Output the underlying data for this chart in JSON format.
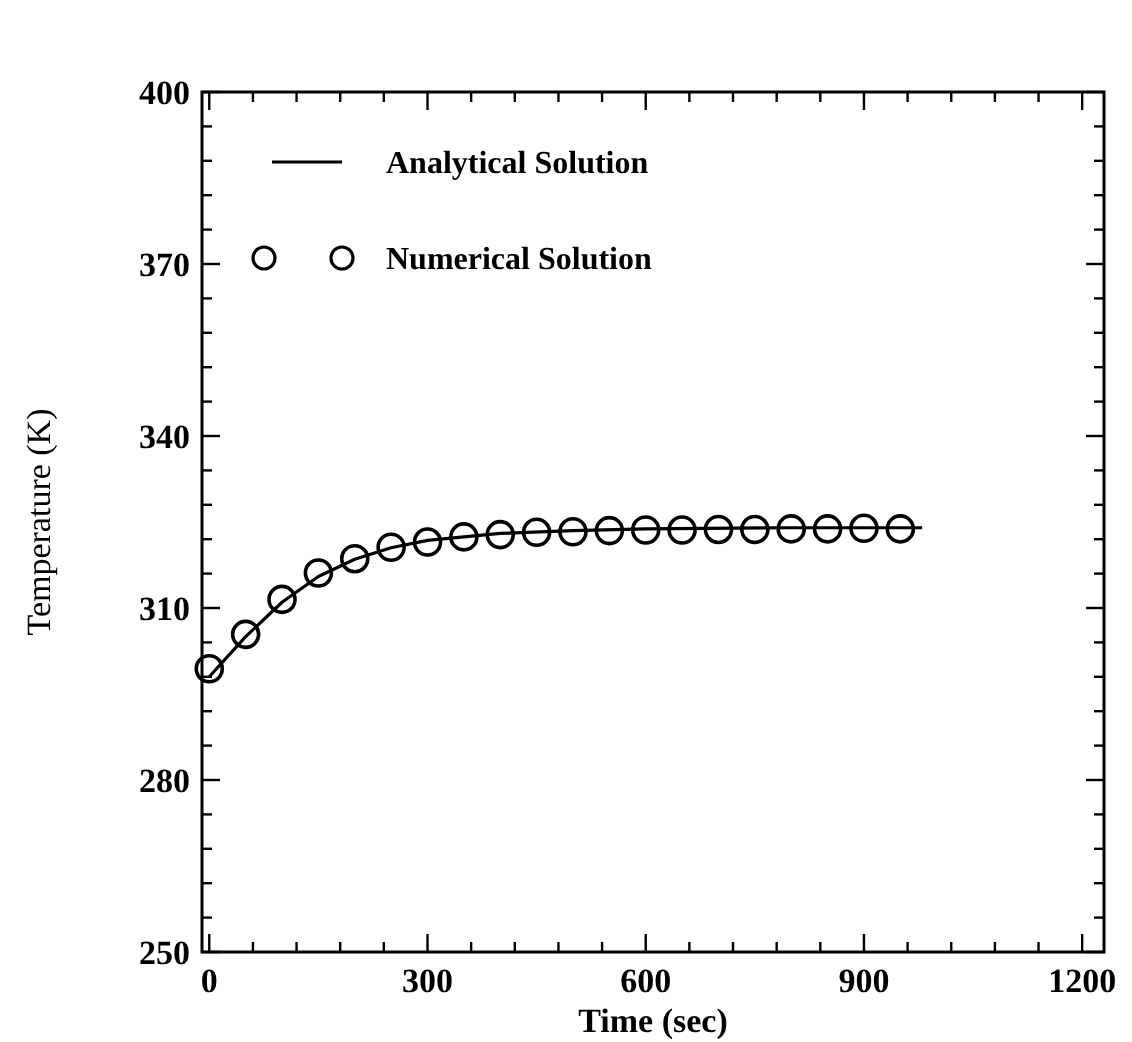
{
  "chart_data": {
    "type": "line",
    "xlabel": "Time (sec)",
    "ylabel": "Temperature (K)",
    "xlim": [
      -10,
      1230
    ],
    "ylim": [
      250,
      400
    ],
    "xticks": [
      0,
      {
        "value": 60,
        "label": null
      },
      {
        "value": 120,
        "label": null
      },
      {
        "value": 180,
        "label": null
      },
      {
        "value": 240,
        "label": null
      },
      300,
      {
        "value": 360,
        "label": null
      },
      {
        "value": 420,
        "label": null
      },
      {
        "value": 480,
        "label": null
      },
      {
        "value": 540,
        "label": null
      },
      600,
      {
        "value": 660,
        "label": null
      },
      {
        "value": 720,
        "label": null
      },
      {
        "value": 780,
        "label": null
      },
      {
        "value": 840,
        "label": null
      },
      900,
      {
        "value": 960,
        "label": null
      },
      {
        "value": 1020,
        "label": null
      },
      {
        "value": 1080,
        "label": null
      },
      {
        "value": 1140,
        "label": null
      },
      1200
    ],
    "yticks": [
      250,
      {
        "value": 256,
        "label": null
      },
      {
        "value": 262,
        "label": null
      },
      {
        "value": 268,
        "label": null
      },
      {
        "value": 274,
        "label": null
      },
      280,
      {
        "value": 286,
        "label": null
      },
      {
        "value": 292,
        "label": null
      },
      {
        "value": 298,
        "label": null
      },
      {
        "value": 304,
        "label": null
      },
      310,
      {
        "value": 316,
        "label": null
      },
      {
        "value": 322,
        "label": null
      },
      {
        "value": 328,
        "label": null
      },
      {
        "value": 334,
        "label": null
      },
      340,
      {
        "value": 346,
        "label": null
      },
      {
        "value": 352,
        "label": null
      },
      {
        "value": 358,
        "label": null
      },
      {
        "value": 364,
        "label": null
      },
      370,
      {
        "value": 376,
        "label": null
      },
      {
        "value": 382,
        "label": null
      },
      {
        "value": 388,
        "label": null
      },
      {
        "value": 394,
        "label": null
      },
      400
    ],
    "legend": "top left",
    "grid": false,
    "series": [
      {
        "name": "Analytical Solution",
        "color": "#000000",
        "marker": "none",
        "line_style": "solid",
        "x": [
          0,
          50,
          100,
          150,
          200,
          250,
          300,
          400,
          500,
          600,
          800,
          980
        ],
        "values": [
          298,
          305,
          311,
          315.5,
          318.5,
          320.5,
          321.8,
          323,
          323.5,
          323.8,
          324,
          324
        ]
      },
      {
        "name": "Numerical Solution",
        "type": "scatter",
        "color": "#000000",
        "marker": "circle",
        "x": [
          0,
          50,
          100,
          150,
          200,
          250,
          300,
          350,
          400,
          450,
          500,
          550,
          600,
          650,
          700,
          750,
          800,
          850,
          900,
          950
        ],
        "values": [
          299.4,
          305.4,
          311.5,
          316.1,
          318.6,
          320.6,
          321.5,
          322.4,
          322.8,
          323.2,
          323.3,
          323.5,
          323.6,
          323.6,
          323.7,
          323.7,
          323.8,
          323.8,
          323.9,
          323.8
        ]
      }
    ]
  }
}
